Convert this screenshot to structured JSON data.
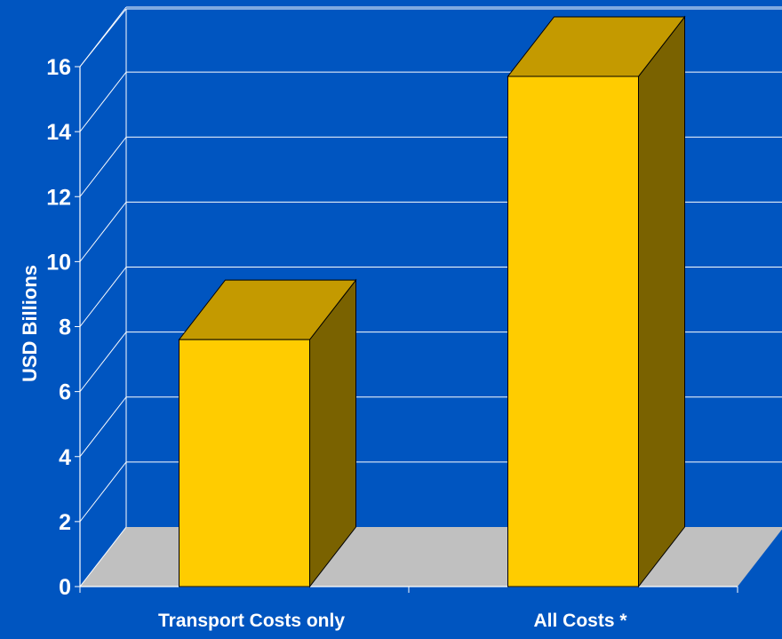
{
  "chart_data": {
    "type": "bar",
    "categories": [
      "Transport Costs only",
      "All Costs *"
    ],
    "series": [
      {
        "values": [
          7.6,
          15.7
        ]
      }
    ],
    "title": "",
    "xlabel": "",
    "ylabel": "USD Billions",
    "ylim": [
      0,
      16
    ],
    "yticks": [
      0,
      2,
      4,
      6,
      8,
      10,
      12,
      14,
      16
    ],
    "grid": true,
    "legend": "none",
    "style": "3d"
  },
  "colors": {
    "background": "#0055c0",
    "gridline": "#ffffff",
    "floor": "#c0c0c0",
    "bar_front": "#ffcc00",
    "bar_top": "#c49a00",
    "bar_side": "#7a6200",
    "text": "#ffffff"
  }
}
